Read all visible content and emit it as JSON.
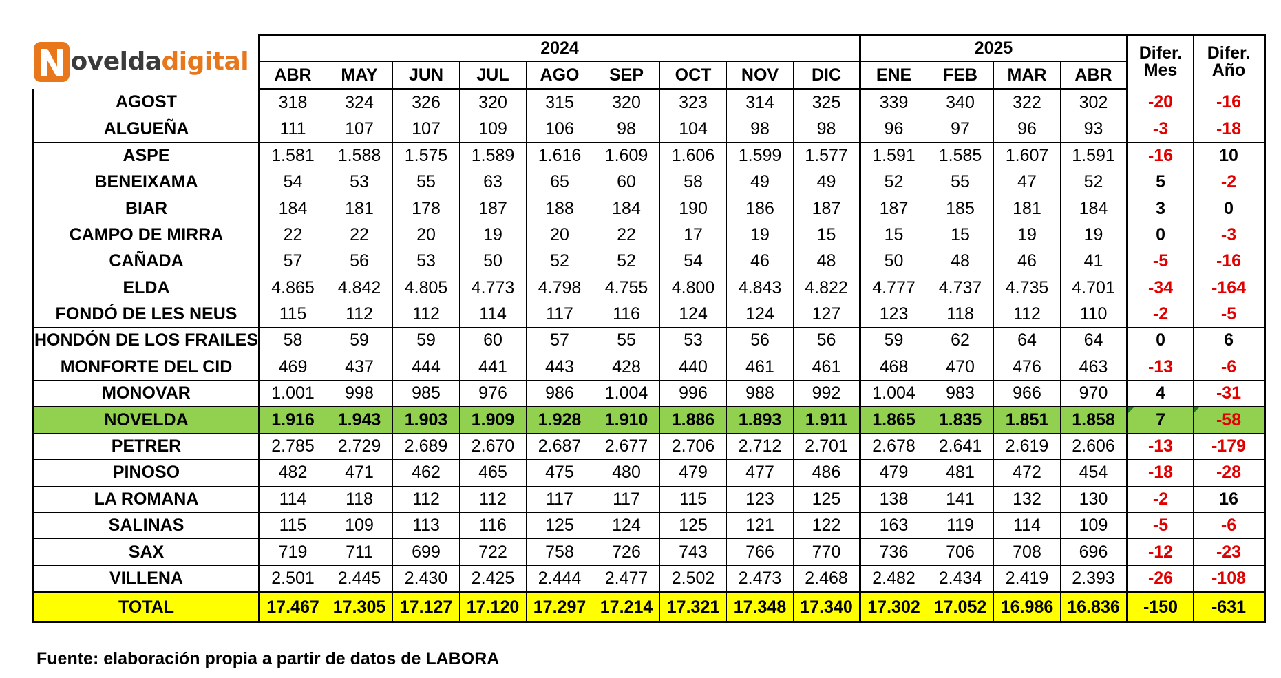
{
  "logo": {
    "part1": "oveldadigital_a",
    "text_dark": "ovelda",
    "text_orange": "digital",
    "letter": "N",
    "brand_dark": "#3b3b3b",
    "brand_orange": "#e8761a"
  },
  "years": {
    "y2024": "2024",
    "y2025": "2025"
  },
  "months": [
    "ABR",
    "MAY",
    "JUN",
    "JUL",
    "AGO",
    "SEP",
    "OCT",
    "NOV",
    "DIC",
    "ENE",
    "FEB",
    "MAR",
    "ABR"
  ],
  "dif_mes": {
    "line1": "Difer.",
    "line2": "Mes"
  },
  "dif_anio": {
    "line1": "Difer.",
    "line2": "Año"
  },
  "rows": [
    {
      "name": "AGOST",
      "values": [
        "318",
        "324",
        "326",
        "320",
        "315",
        "320",
        "323",
        "314",
        "325",
        "339",
        "340",
        "322",
        "302"
      ],
      "dmes": "-20",
      "danio": "-16"
    },
    {
      "name": "ALGUEÑA",
      "values": [
        "111",
        "107",
        "107",
        "109",
        "106",
        "98",
        "104",
        "98",
        "98",
        "96",
        "97",
        "96",
        "93"
      ],
      "dmes": "-3",
      "danio": "-18"
    },
    {
      "name": "ASPE",
      "values": [
        "1.581",
        "1.588",
        "1.575",
        "1.589",
        "1.616",
        "1.609",
        "1.606",
        "1.599",
        "1.577",
        "1.591",
        "1.585",
        "1.607",
        "1.591"
      ],
      "dmes": "-16",
      "danio": "10"
    },
    {
      "name": "BENEIXAMA",
      "values": [
        "54",
        "53",
        "55",
        "63",
        "65",
        "60",
        "58",
        "49",
        "49",
        "52",
        "55",
        "47",
        "52"
      ],
      "dmes": "5",
      "danio": "-2"
    },
    {
      "name": "BIAR",
      "values": [
        "184",
        "181",
        "178",
        "187",
        "188",
        "184",
        "190",
        "186",
        "187",
        "187",
        "185",
        "181",
        "184"
      ],
      "dmes": "3",
      "danio": "0"
    },
    {
      "name": "CAMPO DE MIRRA",
      "values": [
        "22",
        "22",
        "20",
        "19",
        "20",
        "22",
        "17",
        "19",
        "15",
        "15",
        "15",
        "19",
        "19"
      ],
      "dmes": "0",
      "danio": "-3"
    },
    {
      "name": "CAÑADA",
      "values": [
        "57",
        "56",
        "53",
        "50",
        "52",
        "52",
        "54",
        "46",
        "48",
        "50",
        "48",
        "46",
        "41"
      ],
      "dmes": "-5",
      "danio": "-16"
    },
    {
      "name": "ELDA",
      "values": [
        "4.865",
        "4.842",
        "4.805",
        "4.773",
        "4.798",
        "4.755",
        "4.800",
        "4.843",
        "4.822",
        "4.777",
        "4.737",
        "4.735",
        "4.701"
      ],
      "dmes": "-34",
      "danio": "-164"
    },
    {
      "name": "FONDÓ DE LES NEUS",
      "values": [
        "115",
        "112",
        "112",
        "114",
        "117",
        "116",
        "124",
        "124",
        "127",
        "123",
        "118",
        "112",
        "110"
      ],
      "dmes": "-2",
      "danio": "-5"
    },
    {
      "name": "HONDÓN DE LOS FRAILES",
      "values": [
        "58",
        "59",
        "59",
        "60",
        "57",
        "55",
        "53",
        "56",
        "56",
        "59",
        "62",
        "64",
        "64"
      ],
      "dmes": "0",
      "danio": "6"
    },
    {
      "name": "MONFORTE DEL CID",
      "values": [
        "469",
        "437",
        "444",
        "441",
        "443",
        "428",
        "440",
        "461",
        "461",
        "468",
        "470",
        "476",
        "463"
      ],
      "dmes": "-13",
      "danio": "-6"
    },
    {
      "name": "MONOVAR",
      "values": [
        "1.001",
        "998",
        "985",
        "976",
        "986",
        "1.004",
        "996",
        "988",
        "992",
        "1.004",
        "983",
        "966",
        "970"
      ],
      "dmes": "4",
      "danio": "-31"
    },
    {
      "name": "NOVELDA",
      "values": [
        "1.916",
        "1.943",
        "1.903",
        "1.909",
        "1.928",
        "1.910",
        "1.886",
        "1.893",
        "1.911",
        "1.865",
        "1.835",
        "1.851",
        "1.858"
      ],
      "dmes": "7",
      "danio": "-58",
      "highlight": true
    },
    {
      "name": "PETRER",
      "values": [
        "2.785",
        "2.729",
        "2.689",
        "2.670",
        "2.687",
        "2.677",
        "2.706",
        "2.712",
        "2.701",
        "2.678",
        "2.641",
        "2.619",
        "2.606"
      ],
      "dmes": "-13",
      "danio": "-179"
    },
    {
      "name": "PINOSO",
      "values": [
        "482",
        "471",
        "462",
        "465",
        "475",
        "480",
        "479",
        "477",
        "486",
        "479",
        "481",
        "472",
        "454"
      ],
      "dmes": "-18",
      "danio": "-28"
    },
    {
      "name": "LA ROMANA",
      "values": [
        "114",
        "118",
        "112",
        "112",
        "117",
        "117",
        "115",
        "123",
        "125",
        "138",
        "141",
        "132",
        "130"
      ],
      "dmes": "-2",
      "danio": "16"
    },
    {
      "name": "SALINAS",
      "values": [
        "115",
        "109",
        "113",
        "116",
        "125",
        "124",
        "125",
        "121",
        "122",
        "163",
        "119",
        "114",
        "109"
      ],
      "dmes": "-5",
      "danio": "-6"
    },
    {
      "name": "SAX",
      "values": [
        "719",
        "711",
        "699",
        "722",
        "758",
        "726",
        "743",
        "766",
        "770",
        "736",
        "706",
        "708",
        "696"
      ],
      "dmes": "-12",
      "danio": "-23"
    },
    {
      "name": "VILLENA",
      "values": [
        "2.501",
        "2.445",
        "2.430",
        "2.425",
        "2.444",
        "2.477",
        "2.502",
        "2.473",
        "2.468",
        "2.482",
        "2.434",
        "2.419",
        "2.393"
      ],
      "dmes": "-26",
      "danio": "-108"
    }
  ],
  "total": {
    "name": "TOTAL",
    "values": [
      "17.467",
      "17.305",
      "17.127",
      "17.120",
      "17.297",
      "17.214",
      "17.321",
      "17.348",
      "17.340",
      "17.302",
      "17.052",
      "16.986",
      "16.836"
    ],
    "dmes": "-150",
    "danio": "-631"
  },
  "colors": {
    "highlight_row": "#92d050",
    "total_row": "#ffff00",
    "negative": "#e00000"
  },
  "source": "Fuente: elaboración propia a partir de datos de LABORA"
}
